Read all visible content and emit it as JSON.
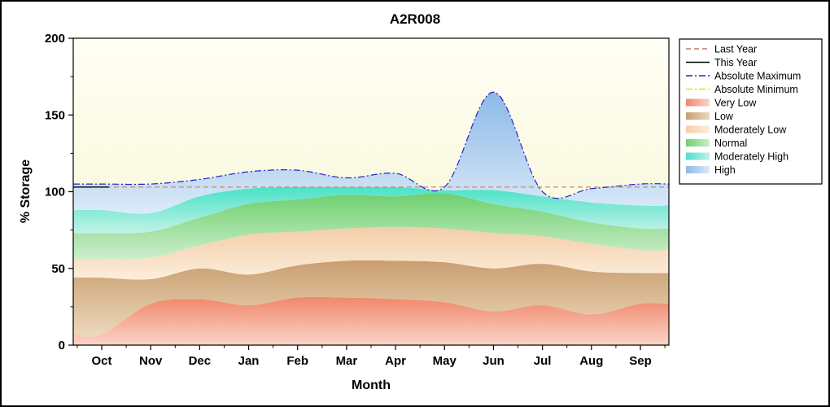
{
  "chart_data": {
    "type": "area",
    "title": "A2R008",
    "xlabel": "Month",
    "ylabel": "% Storage",
    "ylim": [
      0,
      200
    ],
    "yticks": [
      0,
      50,
      100,
      150,
      200
    ],
    "y_minor_step": 25,
    "categories": [
      "Oct",
      "Nov",
      "Dec",
      "Jan",
      "Feb",
      "Mar",
      "Apr",
      "May",
      "Jun",
      "Jul",
      "Aug",
      "Sep"
    ],
    "plot_background": {
      "top": "#fffef4",
      "bottom": "#f5f5cd"
    },
    "bands": [
      {
        "name": "Very Low",
        "values": [
          7,
          27,
          30,
          26,
          31,
          31,
          30,
          28,
          22,
          26,
          20,
          27
        ],
        "color_top": "#f0876a",
        "color_bottom": "#fad4c8"
      },
      {
        "name": "Low",
        "values": [
          44,
          43,
          50,
          46,
          52,
          55,
          55,
          54,
          50,
          53,
          48,
          47
        ],
        "color_top": "#c99e70",
        "color_bottom": "#ecd9bd"
      },
      {
        "name": "Moderately Low",
        "values": [
          56,
          57,
          65,
          72,
          74,
          76,
          77,
          76,
          73,
          71,
          66,
          62
        ],
        "color_top": "#f4cda8",
        "color_bottom": "#fceedb"
      },
      {
        "name": "Normal",
        "values": [
          73,
          74,
          83,
          92,
          95,
          98,
          97,
          99,
          92,
          87,
          80,
          76
        ],
        "color_top": "#6ecf6e",
        "color_bottom": "#cdeecd"
      },
      {
        "name": "Moderately High",
        "values": [
          88,
          86,
          97,
          102,
          103,
          103,
          103,
          101,
          101,
          97,
          93,
          91
        ],
        "color_top": "#49e2c8",
        "color_bottom": "#c2f2e6"
      },
      {
        "name": "High",
        "values": [
          105,
          105,
          108,
          113,
          114,
          109,
          112,
          103,
          165,
          100,
          102,
          105
        ],
        "color_top": "#8cb8e8",
        "color_bottom": "#dcebf8"
      }
    ],
    "lines": [
      {
        "name": "Last Year",
        "value": 103,
        "color": "#c08060",
        "dash": "6 4",
        "width": 1.1
      },
      {
        "name": "This Year",
        "segment": {
          "x": [
            -0.58,
            0.15
          ],
          "value": 103
        },
        "color": "#000000",
        "dash": "",
        "width": 1.3
      },
      {
        "name": "Absolute Minimum",
        "value": 0,
        "color": "#e6e600",
        "dash": "8 3 2 3",
        "width": 1.2
      },
      {
        "name": "Absolute Maximum",
        "values": [
          105,
          105,
          108,
          113,
          114,
          109,
          112,
          103,
          165,
          100,
          102,
          105
        ],
        "color": "#2323c8",
        "dash": "8 3 2 3",
        "width": 1.2
      }
    ],
    "legend": [
      {
        "label": "Last Year",
        "kind": "line",
        "color": "#c08060",
        "dash": "6 4"
      },
      {
        "label": "This Year",
        "kind": "line",
        "color": "#000000",
        "dash": ""
      },
      {
        "label": "Absolute Maximum",
        "kind": "line",
        "color": "#2323c8",
        "dash": "8 3 2 3"
      },
      {
        "label": "Absolute Minimum",
        "kind": "line",
        "color": "#e6e600",
        "dash": "8 3 2 3"
      },
      {
        "label": "Very Low",
        "kind": "fill",
        "colors": [
          "#f0876a",
          "#fad4c8"
        ]
      },
      {
        "label": "Low",
        "kind": "fill",
        "colors": [
          "#c99e70",
          "#ecd9bd"
        ]
      },
      {
        "label": "Moderately Low",
        "kind": "fill",
        "colors": [
          "#f4cda8",
          "#fceedb"
        ]
      },
      {
        "label": "Normal",
        "kind": "fill",
        "colors": [
          "#6ecf6e",
          "#cdeecd"
        ]
      },
      {
        "label": "Moderately High",
        "kind": "fill",
        "colors": [
          "#49e2c8",
          "#c2f2e6"
        ]
      },
      {
        "label": "High",
        "kind": "fill",
        "colors": [
          "#8cb8e8",
          "#dcebf8"
        ]
      }
    ]
  }
}
